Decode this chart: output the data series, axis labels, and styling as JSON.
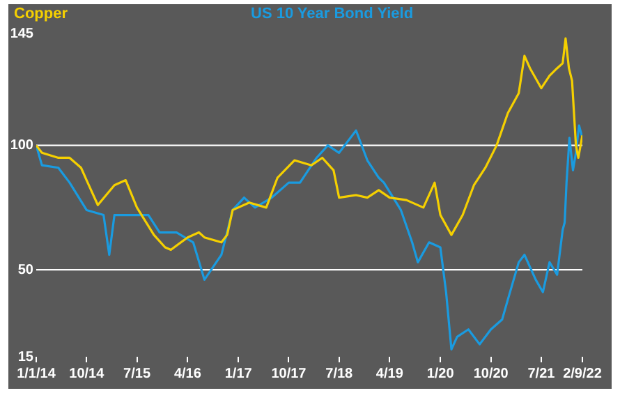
{
  "chart_data": {
    "type": "line",
    "legend": "top",
    "grid": false,
    "marker": "none",
    "xlim": [
      "2014-01-01",
      "2022-02-09"
    ],
    "xticks": [
      {
        "value": "2014-01-01",
        "label": "1/1/14"
      },
      {
        "value": "2014-10-01",
        "label": "10/14"
      },
      {
        "value": "2015-07-01",
        "label": "7/15"
      },
      {
        "value": "2016-04-01",
        "label": "4/16"
      },
      {
        "value": "2017-01-01",
        "label": "1/17"
      },
      {
        "value": "2017-10-01",
        "label": "10/17"
      },
      {
        "value": "2018-07-01",
        "label": "7/18"
      },
      {
        "value": "2019-04-01",
        "label": "4/19"
      },
      {
        "value": "2020-01-01",
        "label": "1/20"
      },
      {
        "value": "2020-10-01",
        "label": "10/20"
      },
      {
        "value": "2021-07-01",
        "label": "7/21"
      },
      {
        "value": "2022-02-09",
        "label": "2/9/22"
      }
    ],
    "ylim": [
      15,
      145
    ],
    "yticks": [
      15,
      50,
      100,
      145
    ],
    "ref_lines": [
      {
        "axis": "y",
        "value": 100,
        "color": "#ffffff"
      },
      {
        "axis": "y",
        "value": 50,
        "color": "#ffffff"
      }
    ],
    "series": [
      {
        "name": "Copper",
        "color": "#f5d000",
        "x": [
          "2014-01",
          "2014-02",
          "2014-05",
          "2014-07",
          "2014-09",
          "2014-10",
          "2014-12",
          "2015-03",
          "2015-05",
          "2015-07",
          "2015-10",
          "2015-12",
          "2016-01",
          "2016-04",
          "2016-06",
          "2016-07",
          "2016-10",
          "2016-11",
          "2016-12",
          "2017-03",
          "2017-06",
          "2017-08",
          "2017-11",
          "2018-02",
          "2018-04",
          "2018-06",
          "2018-07",
          "2018-10",
          "2018-12",
          "2019-02",
          "2019-04",
          "2019-07",
          "2019-10",
          "2019-12",
          "2020-01",
          "2020-03",
          "2020-05",
          "2020-07",
          "2020-09",
          "2020-11",
          "2021-01",
          "2021-03",
          "2021-04",
          "2021-05",
          "2021-07",
          "2021-08-15",
          "2021-09-25",
          "2021-10-25",
          "2021-11-10",
          "2021-11-28",
          "2021-12-15",
          "2022-01-05",
          "2022-01-18",
          "2022-02-09"
        ],
        "values": [
          100,
          97,
          95,
          95,
          91,
          86,
          76,
          84,
          86,
          75,
          64,
          59,
          58,
          63,
          65,
          63,
          61,
          64,
          74,
          77,
          75,
          87,
          94,
          92,
          95,
          90,
          79,
          80,
          79,
          82,
          79,
          78,
          75,
          85,
          72,
          64,
          72,
          84,
          91,
          100,
          113,
          121,
          136,
          131,
          123,
          128,
          131,
          133,
          143,
          131,
          126,
          100,
          95,
          104
        ]
      },
      {
        "name": "US 10 Year Bond Yield",
        "color": "#1a9be0",
        "x": [
          "2014-01",
          "2014-02",
          "2014-05",
          "2014-07",
          "2014-10",
          "2015-01",
          "2015-02",
          "2015-03",
          "2015-06",
          "2015-09",
          "2015-11",
          "2016-02",
          "2016-05",
          "2016-07",
          "2016-10",
          "2016-12",
          "2017-02",
          "2017-04",
          "2017-07",
          "2017-10",
          "2017-12",
          "2018-03",
          "2018-05",
          "2018-07",
          "2018-10",
          "2018-12",
          "2019-02",
          "2019-03",
          "2019-06",
          "2019-08",
          "2019-09",
          "2019-11",
          "2020-01",
          "2020-02",
          "2020-03",
          "2020-04",
          "2020-06",
          "2020-08",
          "2020-10",
          "2020-12",
          "2021-01",
          "2021-03",
          "2021-04",
          "2021-06",
          "2021-07-10",
          "2021-08-15",
          "2021-09-25",
          "2021-10-25",
          "2021-11-05",
          "2021-11-15",
          "2021-12-01",
          "2021-12-20",
          "2022-01-05",
          "2022-01-22",
          "2022-02-09"
        ],
        "values": [
          100,
          92,
          91,
          85,
          74,
          72,
          56,
          72,
          72,
          72,
          65,
          65,
          61,
          46,
          56,
          74,
          79,
          75,
          79,
          85,
          85,
          95,
          100,
          97,
          106,
          94,
          87,
          85,
          74,
          61,
          53,
          61,
          59,
          41,
          18,
          23,
          26,
          20,
          26,
          30,
          38,
          53,
          56,
          46,
          41,
          53,
          48,
          66,
          69,
          85,
          103,
          90,
          97,
          108,
          103
        ]
      }
    ]
  }
}
